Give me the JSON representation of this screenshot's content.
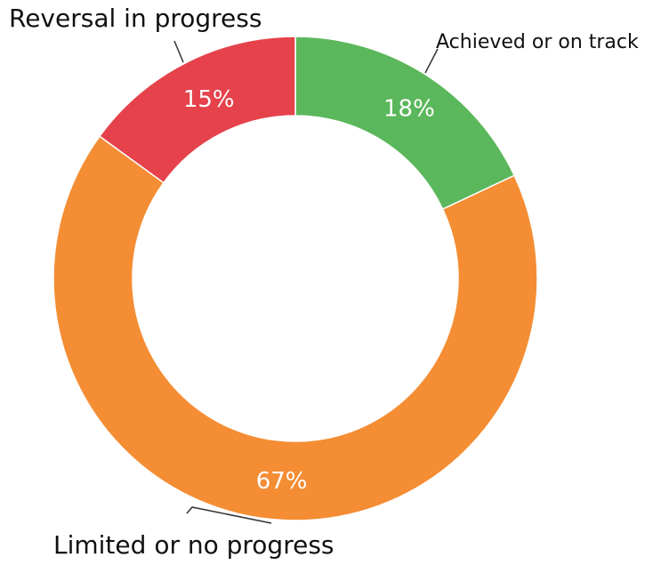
{
  "chart_data": {
    "type": "pie",
    "donut": true,
    "categories": [
      "Achieved or on track",
      "Limited or no progress",
      "Reversal in progress"
    ],
    "values": [
      18,
      67,
      15
    ],
    "value_labels": [
      "18%",
      "67%",
      "15%"
    ],
    "colors": [
      "#5bb75b",
      "#f48d33",
      "#e5424b"
    ]
  }
}
